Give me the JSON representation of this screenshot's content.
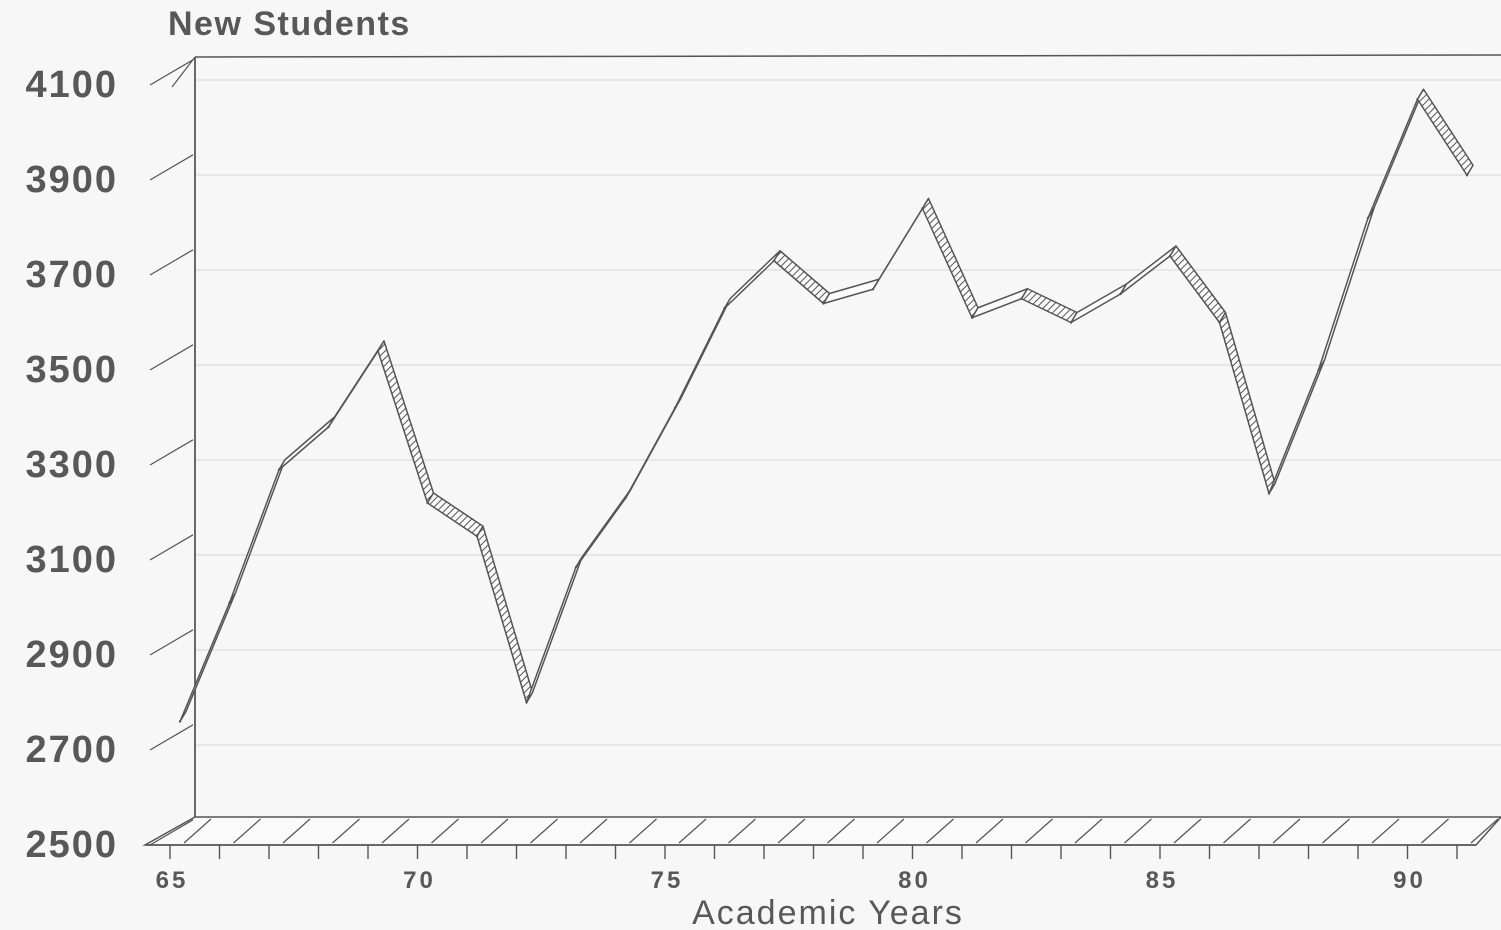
{
  "chart_data": {
    "type": "line",
    "style": "3d-ribbon",
    "title": "New Students",
    "xlabel": "Academic Years",
    "ylabel": "",
    "x": [
      65,
      66,
      67,
      68,
      69,
      70,
      71,
      72,
      73,
      74,
      75,
      76,
      77,
      78,
      79,
      80,
      81,
      82,
      83,
      84,
      85,
      86,
      87,
      88,
      89,
      90,
      91
    ],
    "series": [
      {
        "values": [
          2760,
          3010,
          3290,
          3380,
          3540,
          3220,
          3150,
          2800,
          3085,
          3230,
          3420,
          3630,
          3730,
          3640,
          3670,
          3840,
          3610,
          3650,
          3600,
          3660,
          3740,
          3600,
          3240,
          3500,
          3820,
          4070,
          3910
        ]
      }
    ],
    "ylim": [
      2500,
      4100
    ],
    "yticks": [
      "2500",
      "2700",
      "2900",
      "3100",
      "3300",
      "3500",
      "3700",
      "3900",
      "4100"
    ],
    "xtick_labels": [
      "65",
      "70",
      "75",
      "80",
      "85",
      "90"
    ],
    "xlim": [
      65,
      92
    ],
    "grid": true,
    "legend": "none",
    "colors": {
      "line": "#555555",
      "grid": "#dddddd",
      "background": "#f7f7f7"
    }
  }
}
